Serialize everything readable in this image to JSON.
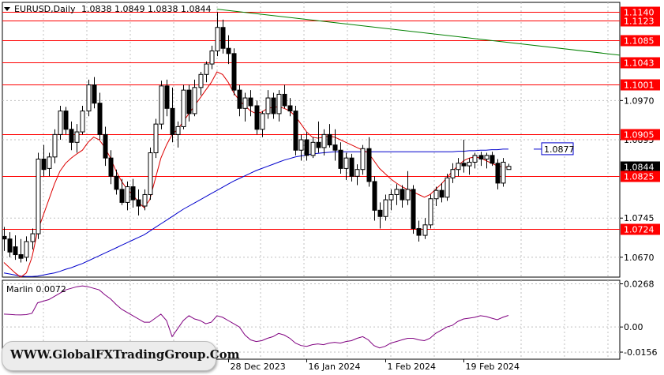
{
  "symbol": "EURUSD,Daily",
  "ohlc": "1.0838 1.0849 1.0838 1.0844",
  "watermark": "WWW.GlobalFXTradingGroup.Com",
  "colors": {
    "bull": "#ffffff",
    "bear": "#000000",
    "level": "#ff0000",
    "ma_fast": "#dd0000",
    "ma_slow": "#0000cc",
    "trend": "#008000",
    "oscillator": "#800080",
    "grid": "#c0c0c0"
  },
  "chart_data": [
    {
      "type": "candlestick",
      "title": "EURUSD,Daily",
      "ylim": [
        1.0632,
        1.1158
      ],
      "price_ticks": [
        "1.0970",
        "1.0895",
        "1.0745",
        "1.0670"
      ],
      "date_labels": [
        "28 Dec 2023",
        "16 Jan 2024",
        "1 Feb 2024",
        "19 Feb 2024"
      ],
      "levels": [
        {
          "label": "1.1140",
          "value": 1.114
        },
        {
          "label": "1.1123",
          "value": 1.1123
        },
        {
          "label": "1.1085",
          "value": 1.1085
        },
        {
          "label": "1.1043",
          "value": 1.1043
        },
        {
          "label": "1.1001",
          "value": 1.1001
        },
        {
          "label": "1.0905",
          "value": 1.0905
        },
        {
          "label": "1.0825",
          "value": 1.0825
        },
        {
          "label": "1.0724",
          "value": 1.0724
        }
      ],
      "current_price": {
        "label": "1.0844",
        "value": 1.0844
      },
      "ma_label": {
        "label": "1.0877",
        "value": 1.0877
      },
      "candles": [
        [
          1.071,
          1.0728,
          1.0682,
          1.0705
        ],
        [
          1.0705,
          1.0718,
          1.067,
          1.068
        ],
        [
          1.069,
          1.0712,
          1.0665,
          1.0675
        ],
        [
          1.0675,
          1.0705,
          1.066,
          1.0668
        ],
        [
          1.067,
          1.071,
          1.0662,
          1.07
        ],
        [
          1.07,
          1.0725,
          1.0685,
          1.0715
        ],
        [
          1.0715,
          1.087,
          1.0705,
          1.0858
        ],
        [
          1.0858,
          1.0885,
          1.0825,
          1.0838
        ],
        [
          1.084,
          1.087,
          1.0825,
          1.0862
        ],
        [
          1.0862,
          1.0915,
          1.085,
          1.0905
        ],
        [
          1.0905,
          1.096,
          1.0895,
          1.095
        ],
        [
          1.095,
          1.0958,
          1.0905,
          1.0915
        ],
        [
          1.0915,
          1.093,
          1.0875,
          1.089
        ],
        [
          1.089,
          1.0925,
          1.087,
          1.091
        ],
        [
          1.091,
          1.096,
          1.0905,
          1.095
        ],
        [
          1.095,
          1.101,
          1.094,
          1.1
        ],
        [
          1.1,
          1.1015,
          1.0955,
          1.0965
        ],
        [
          1.0965,
          1.0985,
          1.0895,
          1.0905
        ],
        [
          1.0905,
          1.092,
          1.0845,
          1.086
        ],
        [
          1.086,
          1.0875,
          1.081,
          1.0825
        ],
        [
          1.0825,
          1.0838,
          1.079,
          1.08
        ],
        [
          1.08,
          1.082,
          1.077,
          1.0775
        ],
        [
          1.0775,
          1.0815,
          1.076,
          1.0805
        ],
        [
          1.0805,
          1.082,
          1.0765,
          1.078
        ],
        [
          1.078,
          1.08,
          1.075,
          1.0768
        ],
        [
          1.0768,
          1.08,
          1.076,
          1.079
        ],
        [
          1.079,
          1.088,
          1.078,
          1.087
        ],
        [
          1.087,
          1.0935,
          1.086,
          1.0925
        ],
        [
          1.0925,
          1.1008,
          1.0915,
          1.0998
        ],
        [
          1.0998,
          1.101,
          1.094,
          1.0955
        ],
        [
          1.0955,
          1.0995,
          1.089,
          1.0905
        ],
        [
          1.0905,
          1.093,
          1.088,
          1.092
        ],
        [
          1.092,
          1.1,
          1.0915,
          1.099
        ],
        [
          1.099,
          1.1,
          1.093,
          1.0945
        ],
        [
          1.0945,
          1.101,
          1.094,
          1.0995
        ],
        [
          1.0995,
          1.1025,
          1.098,
          1.102
        ],
        [
          1.102,
          1.1045,
          1.1005,
          1.104
        ],
        [
          1.104,
          1.1075,
          1.103,
          1.1065
        ],
        [
          1.1065,
          1.1139,
          1.1055,
          1.111
        ],
        [
          1.111,
          1.1125,
          1.106,
          1.107
        ],
        [
          1.107,
          1.1095,
          1.104,
          1.106
        ],
        [
          1.106,
          1.107,
          1.098,
          1.099
        ],
        [
          1.099,
          1.1,
          1.094,
          1.0955
        ],
        [
          1.0955,
          1.0985,
          1.093,
          1.0975
        ],
        [
          1.0975,
          1.099,
          1.094,
          1.096
        ],
        [
          1.096,
          1.097,
          1.0905,
          1.0915
        ],
        [
          1.0915,
          1.095,
          1.09,
          1.0945
        ],
        [
          1.0945,
          1.099,
          1.0935,
          1.0975
        ],
        [
          1.0975,
          1.0985,
          1.0935,
          1.0945
        ],
        [
          1.0945,
          1.099,
          1.093,
          1.0982
        ],
        [
          1.0982,
          1.1,
          1.0955,
          1.096
        ],
        [
          1.096,
          1.0975,
          1.094,
          1.095
        ],
        [
          1.095,
          1.096,
          1.0865,
          1.0875
        ],
        [
          1.0875,
          1.0905,
          1.0855,
          1.0895
        ],
        [
          1.0895,
          1.091,
          1.0855,
          1.0865
        ],
        [
          1.0865,
          1.09,
          1.086,
          1.089
        ],
        [
          1.089,
          1.093,
          1.087,
          1.088
        ],
        [
          1.088,
          1.0915,
          1.0865,
          1.0905
        ],
        [
          1.0905,
          1.0925,
          1.088,
          1.0885
        ],
        [
          1.0885,
          1.0915,
          1.0855,
          1.0875
        ],
        [
          1.0875,
          1.089,
          1.083,
          1.084
        ],
        [
          1.084,
          1.087,
          1.0818,
          1.086
        ],
        [
          1.086,
          1.0868,
          1.0815,
          1.0825
        ],
        [
          1.0825,
          1.0848,
          1.0808,
          1.0838
        ],
        [
          1.0838,
          1.0885,
          1.0828,
          1.0878
        ],
        [
          1.0878,
          1.09,
          1.0805,
          1.0815
        ],
        [
          1.0815,
          1.0825,
          1.074,
          1.076
        ],
        [
          1.076,
          1.0775,
          1.0725,
          1.0748
        ],
        [
          1.0748,
          1.079,
          1.074,
          1.078
        ],
        [
          1.078,
          1.08,
          1.076,
          1.079
        ],
        [
          1.079,
          1.081,
          1.077,
          1.08
        ],
        [
          1.08,
          1.0808,
          1.0765,
          1.078
        ],
        [
          1.078,
          1.0835,
          1.077,
          1.08
        ],
        [
          1.08,
          1.0808,
          1.0715,
          1.0725
        ],
        [
          1.0725,
          1.074,
          1.07,
          1.0712
        ],
        [
          1.0712,
          1.0745,
          1.0705,
          1.0732
        ],
        [
          1.0732,
          1.079,
          1.0725,
          1.0782
        ],
        [
          1.0782,
          1.0805,
          1.0768,
          1.0798
        ],
        [
          1.0798,
          1.0812,
          1.0775,
          1.0785
        ],
        [
          1.0785,
          1.083,
          1.0778,
          1.0822
        ],
        [
          1.0822,
          1.085,
          1.0812,
          1.0838
        ],
        [
          1.0838,
          1.086,
          1.0825,
          1.085
        ],
        [
          1.085,
          1.0895,
          1.0832,
          1.0845
        ],
        [
          1.0845,
          1.086,
          1.0828,
          1.0852
        ],
        [
          1.0852,
          1.087,
          1.084,
          1.0865
        ],
        [
          1.0865,
          1.0872,
          1.0845,
          1.0858
        ],
        [
          1.0858,
          1.087,
          1.084,
          1.0865
        ],
        [
          1.0865,
          1.0872,
          1.0845,
          1.085
        ],
        [
          1.085,
          1.0858,
          1.08,
          1.0812
        ],
        [
          1.0812,
          1.086,
          1.0805,
          1.0852
        ],
        [
          1.0838,
          1.0849,
          1.0838,
          1.0844
        ]
      ],
      "ma_fast": [
        1.066,
        1.065,
        1.064,
        1.0632,
        1.064,
        1.067,
        1.072,
        1.075,
        1.078,
        1.081,
        1.0835,
        1.085,
        1.086,
        1.0868,
        1.0875,
        1.089,
        1.09,
        1.0895,
        1.088,
        1.086,
        1.0835,
        1.0815,
        1.08,
        1.079,
        1.0775,
        1.0765,
        1.078,
        1.082,
        1.086,
        1.0885,
        1.0905,
        1.0915,
        1.093,
        1.0945,
        1.096,
        1.0975,
        1.099,
        1.1005,
        1.1025,
        1.102,
        1.1005,
        1.0985,
        1.097,
        1.096,
        1.095,
        1.0945,
        1.0948,
        1.0955,
        1.0957,
        1.0958,
        1.0955,
        1.095,
        1.094,
        1.0925,
        1.091,
        1.09,
        1.0898,
        1.09,
        1.0902,
        1.09,
        1.0895,
        1.089,
        1.0885,
        1.088,
        1.0875,
        1.087,
        1.0855,
        1.084,
        1.083,
        1.082,
        1.0812,
        1.0805,
        1.08,
        1.0795,
        1.079,
        1.0785,
        1.079,
        1.08,
        1.081,
        1.0822,
        1.0835,
        1.0845,
        1.0855,
        1.086,
        1.0862,
        1.086,
        1.0855,
        1.085,
        1.0845,
        1.0843,
        1.0842
      ],
      "ma_slow": [
        1.064,
        1.0638,
        1.0636,
        1.0634,
        1.0633,
        1.0633,
        1.0634,
        1.0636,
        1.0638,
        1.064,
        1.0643,
        1.0647,
        1.065,
        1.0654,
        1.0658,
        1.0663,
        1.0668,
        1.0673,
        1.0678,
        1.0683,
        1.0688,
        1.0693,
        1.0698,
        1.0703,
        1.0708,
        1.0713,
        1.072,
        1.0727,
        1.0734,
        1.0741,
        1.0748,
        1.0755,
        1.0762,
        1.0768,
        1.0774,
        1.078,
        1.0786,
        1.0792,
        1.0798,
        1.0804,
        1.081,
        1.0816,
        1.0821,
        1.0826,
        1.0831,
        1.0836,
        1.084,
        1.0844,
        1.0848,
        1.0852,
        1.0856,
        1.0859,
        1.0862,
        1.0864,
        1.0866,
        1.0868,
        1.0869,
        1.087,
        1.0871,
        1.0872,
        1.0872,
        1.0872,
        1.0872,
        1.0872,
        1.0872,
        1.0872,
        1.0872,
        1.0872,
        1.0872,
        1.0872,
        1.0872,
        1.0872,
        1.0872,
        1.0872,
        1.0872,
        1.0872,
        1.0872,
        1.0872,
        1.0872,
        1.0872,
        1.0872,
        1.0873,
        1.0873,
        1.0874,
        1.0874,
        1.0875,
        1.0875,
        1.0876,
        1.0876,
        1.0877,
        1.0877
      ],
      "trendline": {
        "from": [
          38,
          1.1145
        ],
        "to": [
          95,
          1.1057
        ]
      }
    },
    {
      "type": "line",
      "title": "Marlin 0.0072",
      "ylim": [
        -0.02,
        0.029
      ],
      "ticks": [
        "0.0268",
        "0.00",
        "-0.0156"
      ],
      "series": [
        {
          "values": [
            0.008,
            0.0078,
            0.0076,
            0.0075,
            0.0077,
            0.0085,
            0.015,
            0.016,
            0.017,
            0.019,
            0.021,
            0.023,
            0.024,
            0.025,
            0.0255,
            0.025,
            0.024,
            0.023,
            0.02,
            0.0175,
            0.014,
            0.011,
            0.009,
            0.007,
            0.005,
            0.003,
            0.003,
            0.0055,
            0.008,
            0.004,
            -0.006,
            -0.001,
            0.004,
            0.007,
            0.005,
            0.004,
            0.002,
            0.003,
            0.007,
            0.006,
            0.004,
            0.002,
            0.0,
            -0.005,
            -0.008,
            -0.009,
            -0.0085,
            -0.007,
            -0.006,
            -0.004,
            -0.005,
            -0.007,
            -0.01,
            -0.0115,
            -0.012,
            -0.011,
            -0.0105,
            -0.011,
            -0.01,
            -0.0095,
            -0.01,
            -0.009,
            -0.0085,
            -0.007,
            -0.006,
            -0.008,
            -0.0115,
            -0.013,
            -0.012,
            -0.01,
            -0.009,
            -0.008,
            -0.007,
            -0.007,
            -0.008,
            -0.0085,
            -0.007,
            -0.004,
            -0.002,
            0.0,
            0.001,
            0.0035,
            0.005,
            0.0055,
            0.006,
            0.007,
            0.0065,
            0.0055,
            0.0045,
            0.006,
            0.0072
          ]
        }
      ]
    }
  ]
}
